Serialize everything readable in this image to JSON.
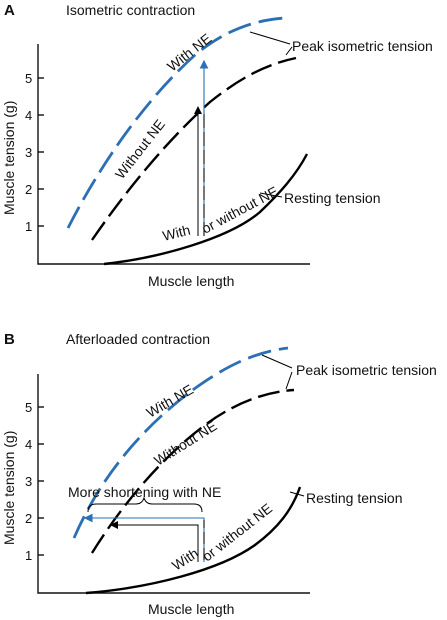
{
  "colors": {
    "with_ne": "#2c6fb5",
    "without_ne": "#000000",
    "resting": "#000000"
  },
  "chart_data": [
    {
      "type": "line",
      "panel": "A",
      "title": "Isometric contraction",
      "xlabel": "Muscle length",
      "ylabel": "Muscle tension (g)",
      "ylim": [
        0,
        6.2
      ],
      "yticks": [
        "1",
        "2",
        "3",
        "4",
        "5"
      ],
      "series": [
        {
          "name": "With NE",
          "style": "blue-dashed",
          "x": [
            0.8,
            2,
            3,
            4,
            5,
            6,
            7,
            8,
            9
          ],
          "y": [
            1.0,
            2.4,
            3.4,
            4.2,
            4.9,
            5.4,
            5.8,
            6.1,
            6.3
          ]
        },
        {
          "name": "Without NE",
          "style": "black-dashed",
          "x": [
            1.5,
            2.5,
            3.5,
            4.5,
            5.5,
            6.5,
            7.5,
            8.5
          ],
          "y": [
            0.7,
            1.7,
            2.6,
            3.5,
            4.2,
            4.8,
            5.2,
            5.5
          ]
        },
        {
          "name": "Resting tension",
          "style": "black-solid",
          "x": [
            2.0,
            3,
            4,
            5,
            6,
            7,
            8,
            8.9
          ],
          "y": [
            0.0,
            0.12,
            0.32,
            0.6,
            1.0,
            1.5,
            2.1,
            2.9
          ]
        }
      ],
      "annotations": {
        "with_ne": "With NE",
        "without_ne": "Without NE",
        "peak": "Peak isometric tension",
        "resting": "Resting tension",
        "with_or_without_left": "With",
        "with_or_without_right": "or without NE"
      }
    },
    {
      "type": "line",
      "panel": "B",
      "title": "Afterloaded contraction",
      "xlabel": "Muscle length",
      "ylabel": "Muscle tension (g)",
      "ylim": [
        0,
        6.2
      ],
      "yticks": [
        "1",
        "2",
        "3",
        "4",
        "5"
      ],
      "series": [
        {
          "name": "With NE",
          "style": "blue-dashed",
          "x": [
            1.0,
            2,
            3,
            4,
            5,
            6,
            7,
            8,
            9
          ],
          "y": [
            1.4,
            2.6,
            3.6,
            4.5,
            5.1,
            5.6,
            5.9,
            6.2,
            6.3
          ]
        },
        {
          "name": "Without NE",
          "style": "black-dashed",
          "x": [
            1.5,
            2.5,
            3.5,
            4.5,
            5.5,
            6.5,
            7.5,
            8.5
          ],
          "y": [
            1.0,
            2.0,
            2.9,
            3.7,
            4.4,
            4.9,
            5.3,
            5.5
          ]
        },
        {
          "name": "Resting tension",
          "style": "black-solid",
          "x": [
            1.5,
            3,
            4,
            5,
            6,
            7,
            8,
            9
          ],
          "y": [
            0.0,
            0.15,
            0.35,
            0.65,
            1.05,
            1.55,
            2.2,
            3.0
          ]
        }
      ],
      "annotations": {
        "with_ne": "With NE",
        "without_ne": "Without NE",
        "peak": "Peak isometric tension",
        "resting": "Resting tension",
        "with_or_without_left": "With",
        "with_or_without_right": "or without NE",
        "shortening": "More shortening with NE"
      }
    }
  ]
}
